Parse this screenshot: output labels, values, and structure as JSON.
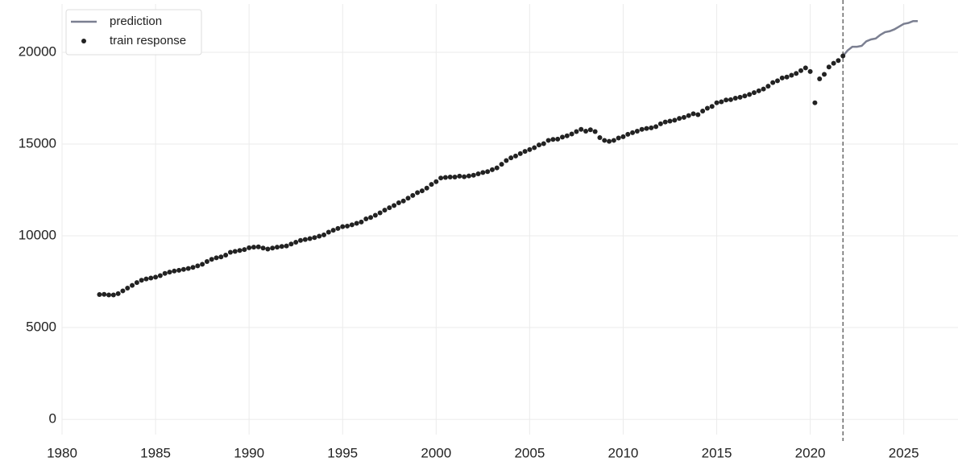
{
  "chart_data": {
    "type": "line",
    "xlim": [
      1980,
      2027.9
    ],
    "xticks": [
      1980,
      1985,
      1990,
      1995,
      2000,
      2005,
      2010,
      2015,
      2020,
      2025
    ],
    "ylim": [
      -830,
      22630
    ],
    "yticks": [
      0,
      5000,
      10000,
      15000,
      20000
    ],
    "grid": true,
    "legend": "upper left",
    "cutoff_x": 2021.75,
    "series": [
      {
        "name": "prediction",
        "type": "line",
        "color": "#7b7f91",
        "x": [
          2021.75,
          2022,
          2022.25,
          2022.5,
          2022.75,
          2023,
          2023.25,
          2023.5,
          2023.75,
          2024,
          2024.25,
          2024.5,
          2024.75,
          2025,
          2025.25,
          2025.5,
          2025.75
        ],
        "values": [
          19800,
          20100,
          20300,
          20300,
          20350,
          20600,
          20700,
          20750,
          20950,
          21100,
          21150,
          21250,
          21400,
          21550,
          21600,
          21700,
          21700
        ]
      },
      {
        "name": "train response",
        "type": "scatter",
        "color": "#222222",
        "x": [
          1982,
          1982.25,
          1982.5,
          1982.75,
          1983,
          1983.25,
          1983.5,
          1983.75,
          1984,
          1984.25,
          1984.5,
          1984.75,
          1985,
          1985.25,
          1985.5,
          1985.75,
          1986,
          1986.25,
          1986.5,
          1986.75,
          1987,
          1987.25,
          1987.5,
          1987.75,
          1988,
          1988.25,
          1988.5,
          1988.75,
          1989,
          1989.25,
          1989.5,
          1989.75,
          1990,
          1990.25,
          1990.5,
          1990.75,
          1991,
          1991.25,
          1991.5,
          1991.75,
          1992,
          1992.25,
          1992.5,
          1992.75,
          1993,
          1993.25,
          1993.5,
          1993.75,
          1994,
          1994.25,
          1994.5,
          1994.75,
          1995,
          1995.25,
          1995.5,
          1995.75,
          1996,
          1996.25,
          1996.5,
          1996.75,
          1997,
          1997.25,
          1997.5,
          1997.75,
          1998,
          1998.25,
          1998.5,
          1998.75,
          1999,
          1999.25,
          1999.5,
          1999.75,
          2000,
          2000.25,
          2000.5,
          2000.75,
          2001,
          2001.25,
          2001.5,
          2001.75,
          2002,
          2002.25,
          2002.5,
          2002.75,
          2003,
          2003.25,
          2003.5,
          2003.75,
          2004,
          2004.25,
          2004.5,
          2004.75,
          2005,
          2005.25,
          2005.5,
          2005.75,
          2006,
          2006.25,
          2006.5,
          2006.75,
          2007,
          2007.25,
          2007.5,
          2007.75,
          2008,
          2008.25,
          2008.5,
          2008.75,
          2009,
          2009.25,
          2009.5,
          2009.75,
          2010,
          2010.25,
          2010.5,
          2010.75,
          2011,
          2011.25,
          2011.5,
          2011.75,
          2012,
          2012.25,
          2012.5,
          2012.75,
          2013,
          2013.25,
          2013.5,
          2013.75,
          2014,
          2014.25,
          2014.5,
          2014.75,
          2015,
          2015.25,
          2015.5,
          2015.75,
          2016,
          2016.25,
          2016.5,
          2016.75,
          2017,
          2017.25,
          2017.5,
          2017.75,
          2018,
          2018.25,
          2018.5,
          2018.75,
          2019,
          2019.25,
          2019.5,
          2019.75,
          2020,
          2020.25,
          2020.5,
          2020.75,
          2021,
          2021.25,
          2021.5,
          2021.75
        ],
        "values": [
          6800,
          6810,
          6780,
          6780,
          6850,
          7000,
          7150,
          7300,
          7450,
          7580,
          7650,
          7700,
          7750,
          7830,
          7950,
          8020,
          8080,
          8120,
          8170,
          8220,
          8280,
          8360,
          8450,
          8600,
          8720,
          8800,
          8850,
          8950,
          9100,
          9150,
          9200,
          9250,
          9350,
          9380,
          9400,
          9330,
          9280,
          9330,
          9380,
          9420,
          9450,
          9550,
          9650,
          9750,
          9800,
          9850,
          9900,
          9980,
          10050,
          10200,
          10300,
          10400,
          10500,
          10530,
          10600,
          10680,
          10750,
          10920,
          11000,
          11120,
          11250,
          11400,
          11530,
          11650,
          11800,
          11900,
          12050,
          12200,
          12350,
          12450,
          12600,
          12800,
          12950,
          13150,
          13180,
          13200,
          13200,
          13250,
          13220,
          13260,
          13300,
          13380,
          13450,
          13500,
          13600,
          13700,
          13900,
          14100,
          14250,
          14350,
          14480,
          14600,
          14700,
          14800,
          14950,
          15020,
          15200,
          15250,
          15270,
          15380,
          15450,
          15550,
          15680,
          15800,
          15700,
          15780,
          15680,
          15350,
          15200,
          15150,
          15200,
          15330,
          15400,
          15530,
          15620,
          15700,
          15800,
          15850,
          15880,
          15950,
          16100,
          16200,
          16250,
          16300,
          16400,
          16450,
          16550,
          16650,
          16600,
          16800,
          16950,
          17050,
          17250,
          17300,
          17400,
          17420,
          17500,
          17550,
          17620,
          17700,
          17800,
          17900,
          18000,
          18150,
          18350,
          18450,
          18600,
          18650,
          18750,
          18850,
          19000,
          19150,
          18950,
          17250,
          18550,
          18800,
          19200,
          19400,
          19550,
          19800
        ]
      }
    ]
  }
}
